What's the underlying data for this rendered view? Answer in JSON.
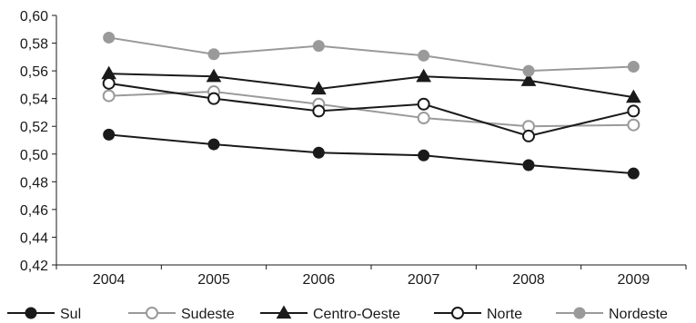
{
  "chart_data": {
    "type": "line",
    "x": [
      "2004",
      "2005",
      "2006",
      "2007",
      "2008",
      "2009"
    ],
    "ylim": [
      0.42,
      0.6
    ],
    "y_ticks": [
      "0,42",
      "0,44",
      "0,46",
      "0,48",
      "0,50",
      "0,52",
      "0,54",
      "0,56",
      "0,58",
      "0,60"
    ],
    "grid": false,
    "legend_position": "bottom",
    "series": [
      {
        "name": "Sul",
        "color": "#1a1a1a",
        "marker": "circle-filled",
        "values": [
          0.514,
          0.507,
          0.501,
          0.499,
          0.492,
          0.486
        ]
      },
      {
        "name": "Sudeste",
        "color": "#9a9a9a",
        "marker": "circle-open",
        "values": [
          0.542,
          0.545,
          0.536,
          0.526,
          0.52,
          0.521
        ]
      },
      {
        "name": "Centro-Oeste",
        "color": "#1a1a1a",
        "marker": "triangle-filled",
        "values": [
          0.558,
          0.556,
          0.547,
          0.556,
          0.553,
          0.541
        ]
      },
      {
        "name": "Norte",
        "color": "#1a1a1a",
        "marker": "circle-open",
        "values": [
          0.551,
          0.54,
          0.531,
          0.536,
          0.513,
          0.531
        ]
      },
      {
        "name": "Nordeste",
        "color": "#9a9a9a",
        "marker": "circle-filled",
        "values": [
          0.584,
          0.572,
          0.578,
          0.571,
          0.56,
          0.563
        ]
      }
    ]
  }
}
